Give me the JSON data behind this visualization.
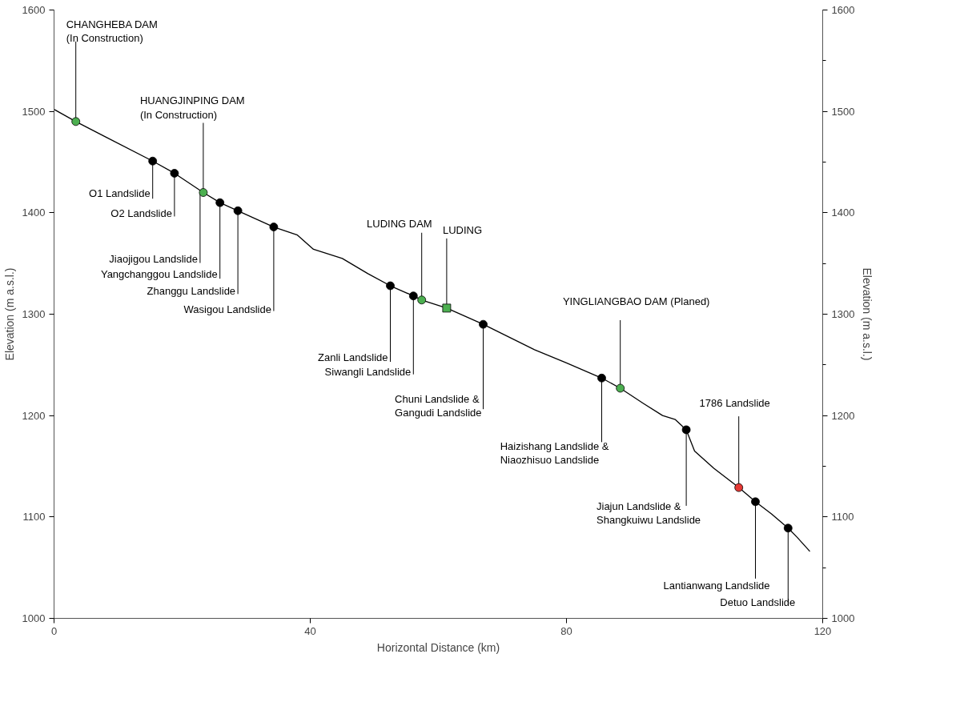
{
  "chart_data": {
    "type": "line",
    "xlabel": "Horizontal Distance (km)",
    "ylabel": "Elevation (m a.s.l.)",
    "y2label": "Elevation (m a.s.l.)",
    "xlim": [
      0,
      120
    ],
    "xticks": [
      0,
      40,
      80,
      120
    ],
    "ylim": [
      1000,
      1600
    ],
    "yticks": [
      1000,
      1100,
      1200,
      1300,
      1400,
      1500,
      1600
    ],
    "y2lim": [
      1000,
      1600
    ],
    "y2ticks": [
      1000,
      {
        "value": 1050,
        "label": null
      },
      1100,
      {
        "value": 1150,
        "label": null
      },
      1200,
      {
        "value": 1250,
        "label": null
      },
      1300,
      {
        "value": 1350,
        "label": null
      },
      1400,
      {
        "value": 1450,
        "label": null
      },
      1500,
      {
        "value": 1550,
        "label": null
      },
      1600
    ],
    "grid": false,
    "series": [
      {
        "color": "#000000",
        "marker": "none",
        "x": [
          0,
          3.4,
          8,
          15.4,
          18.8,
          23.3,
          25.9,
          28.7,
          34.3,
          38,
          40.5,
          45,
          49,
          52.5,
          56.1,
          57.4,
          61.3,
          67,
          75,
          80,
          85.5,
          88.4,
          92,
          95,
          97,
          98.7,
          100,
          103,
          106.9,
          109.5,
          112,
          114.6,
          116,
          118
        ],
        "values": [
          1502,
          1490,
          1475,
          1451,
          1439,
          1420,
          1410,
          1402,
          1386,
          1378,
          1364,
          1355,
          1340,
          1328,
          1318,
          1314,
          1306,
          1290,
          1265,
          1252,
          1237,
          1227,
          1212,
          1200,
          1196,
          1186,
          1165,
          1148,
          1129,
          1115,
          1103,
          1089,
          1080,
          1066
        ]
      },
      {
        "type": "scatter",
        "color": "#000000",
        "marker": "circle",
        "x": [
          15.4,
          18.8,
          25.9,
          28.7,
          34.3,
          52.5,
          56.1,
          67,
          85.5,
          98.7,
          109.5,
          114.6
        ],
        "values": [
          1451,
          1439,
          1410,
          1402,
          1386,
          1328,
          1318,
          1290,
          1237,
          1186,
          1115,
          1089
        ]
      },
      {
        "type": "scatter",
        "color": "#4caf50",
        "marker": "circle",
        "x": [
          3.4,
          23.3,
          57.4,
          88.4
        ],
        "values": [
          1490,
          1420,
          1314,
          1227
        ]
      },
      {
        "type": "scatter",
        "color": "#4caf50",
        "marker": "square",
        "x": [
          61.3
        ],
        "values": [
          1306
        ]
      },
      {
        "type": "scatter",
        "color": "#e53935",
        "marker": "circle",
        "x": [
          106.9
        ],
        "values": [
          1129
        ]
      }
    ],
    "annotations": [
      {
        "text": "CHANGHEBA DAM\n(In Construction)",
        "x": 3.4,
        "y": 1490
      },
      {
        "text": "HUANGJINPING DAM\n(In Construction)",
        "x": 23.3,
        "y": 1420
      },
      {
        "text": "O1 Landslide",
        "x": 15.4,
        "y": 1451
      },
      {
        "text": "O2 Landslide",
        "x": 18.8,
        "y": 1439
      },
      {
        "text": "Jiaojigou Landslide",
        "x": 22.8,
        "y": 1420
      },
      {
        "text": "Yangchanggou Landslide",
        "x": 25.9,
        "y": 1410
      },
      {
        "text": "Zhanggu Landslide",
        "x": 28.7,
        "y": 1402
      },
      {
        "text": "Wasigou Landslide",
        "x": 34.3,
        "y": 1386
      },
      {
        "text": "LUDING DAM",
        "x": 57.4,
        "y": 1314
      },
      {
        "text": "LUDING",
        "x": 61.3,
        "y": 1306
      },
      {
        "text": "Zanli Landslide",
        "x": 52.5,
        "y": 1328
      },
      {
        "text": "Siwangli Landslide",
        "x": 56.1,
        "y": 1318
      },
      {
        "text": "Chuni Landslide &\nGangudi Landslide",
        "x": 67,
        "y": 1290
      },
      {
        "text": "YINGLIANGBAO DAM (Planed)",
        "x": 88.4,
        "y": 1227
      },
      {
        "text": "Haizishang Landslide &\nNiaozhisuo Landslide",
        "x": 85.5,
        "y": 1237
      },
      {
        "text": "1786 Landslide",
        "x": 106.9,
        "y": 1129
      },
      {
        "text": "Jiajun Landslide &\nShangkuiwu Landslide",
        "x": 98.7,
        "y": 1186
      },
      {
        "text": "Lantianwang Landslide",
        "x": 109.5,
        "y": 1115
      },
      {
        "text": "Detuo Landslide",
        "x": 114.6,
        "y": 1089
      }
    ]
  }
}
